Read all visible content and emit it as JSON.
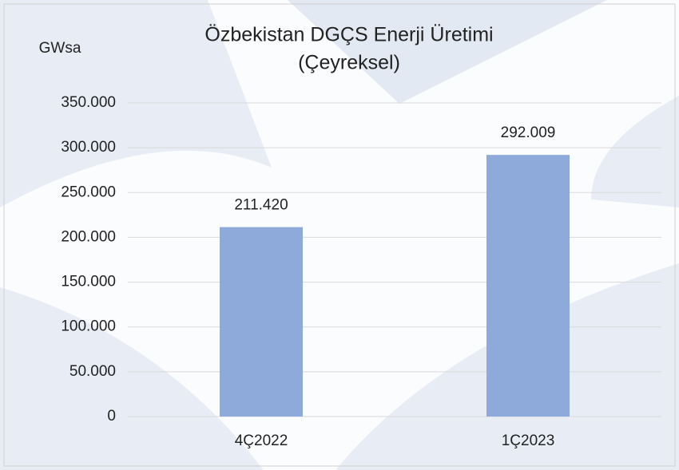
{
  "chart_data": {
    "type": "bar",
    "title": [
      "Özbekistan DGÇS Enerji Üretimi",
      "(Çeyreksel)"
    ],
    "y_label": "GWsa",
    "categories": [
      "4Ç2022",
      "1Ç2023"
    ],
    "values": [
      211420,
      292009
    ],
    "value_labels": [
      "211.420",
      "292.009"
    ],
    "color": "#8eaadb",
    "ylim": [
      0,
      350000
    ],
    "yticks": [
      0,
      {
        "value": 50000,
        "label": "50.000"
      },
      {
        "value": 100000,
        "label": "100.000"
      },
      {
        "value": 150000,
        "label": "150.000"
      },
      {
        "value": 200000,
        "label": "200.000"
      },
      {
        "value": 250000,
        "label": "250.000"
      },
      {
        "value": 300000,
        "label": "300.000"
      },
      {
        "value": 350000,
        "label": "350.000"
      }
    ],
    "grid": true
  }
}
